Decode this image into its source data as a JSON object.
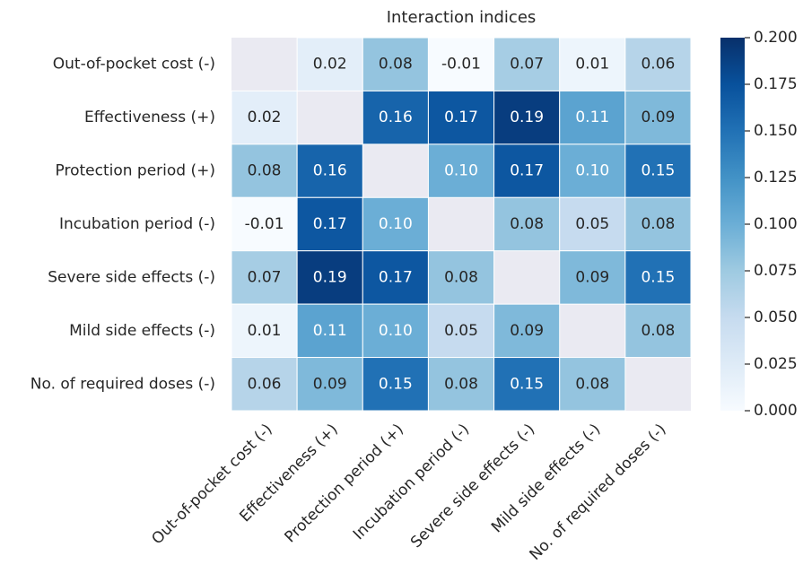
{
  "chart_data": {
    "type": "heatmap",
    "title": "Interaction indices",
    "x_categories": [
      "Out-of-pocket cost (-)",
      "Effectiveness (+)",
      "Protection period (+)",
      "Incubation period (-)",
      "Severe side effects (-)",
      "Mild side effects (-)",
      "No. of required doses (-)"
    ],
    "y_categories": [
      "Out-of-pocket cost (-)",
      "Effectiveness (+)",
      "Protection period (+)",
      "Incubation period (-)",
      "Severe side effects (-)",
      "Mild side effects (-)",
      "No. of required doses (-)"
    ],
    "values": [
      [
        null,
        0.02,
        0.08,
        -0.01,
        0.07,
        0.01,
        0.06
      ],
      [
        0.02,
        null,
        0.16,
        0.17,
        0.19,
        0.11,
        0.09
      ],
      [
        0.08,
        0.16,
        null,
        0.1,
        0.17,
        0.1,
        0.15
      ],
      [
        -0.01,
        0.17,
        0.1,
        null,
        0.08,
        0.05,
        0.08
      ],
      [
        0.07,
        0.19,
        0.17,
        0.08,
        null,
        0.09,
        0.15
      ],
      [
        0.01,
        0.11,
        0.1,
        0.05,
        0.09,
        null,
        0.08
      ],
      [
        0.06,
        0.09,
        0.15,
        0.08,
        0.15,
        0.08,
        null
      ]
    ],
    "value_labels": [
      [
        null,
        "0.02",
        "0.08",
        "-0.01",
        "0.07",
        "0.01",
        "0.06"
      ],
      [
        "0.02",
        null,
        "0.16",
        "0.17",
        "0.19",
        "0.11",
        "0.09"
      ],
      [
        "0.08",
        "0.16",
        null,
        "0.10",
        "0.17",
        "0.10",
        "0.15"
      ],
      [
        "-0.01",
        "0.17",
        "0.10",
        null,
        "0.08",
        "0.05",
        "0.08"
      ],
      [
        "0.07",
        "0.19",
        "0.17",
        "0.08",
        null,
        "0.09",
        "0.15"
      ],
      [
        "0.01",
        "0.11",
        "0.10",
        "0.05",
        "0.09",
        null,
        "0.08"
      ],
      [
        "0.06",
        "0.09",
        "0.15",
        "0.08",
        "0.15",
        "0.08",
        null
      ]
    ],
    "colormap": "Blues",
    "colorbar_lim": [
      0,
      0.2
    ],
    "colorbar_ticks": [
      {
        "value": 0,
        "label": "0.000"
      },
      {
        "value": 0.025,
        "label": "0.025"
      },
      {
        "value": 0.05,
        "label": "0.050"
      },
      {
        "value": 0.075,
        "label": "0.075"
      },
      {
        "value": 0.1,
        "label": "0.100"
      },
      {
        "value": 0.125,
        "label": "0.125"
      },
      {
        "value": 0.15,
        "label": "0.150"
      },
      {
        "value": 0.175,
        "label": "0.175"
      },
      {
        "value": 0.2,
        "label": "0.200"
      }
    ]
  }
}
